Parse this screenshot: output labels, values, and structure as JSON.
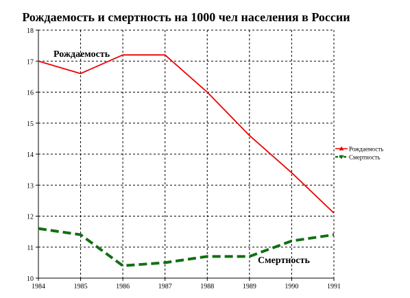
{
  "chart_data": {
    "type": "line",
    "title": "Рождаемость и смертность на 1000 чел населения в России",
    "x": [
      "1984",
      "1985",
      "1986",
      "1987",
      "1988",
      "1989",
      "1990",
      "1991"
    ],
    "ylim": [
      10,
      18
    ],
    "yticks": [
      "10",
      "11",
      "12",
      "13",
      "14",
      "15",
      "16",
      "17",
      "18"
    ],
    "grid": true,
    "legend_position": "right",
    "series": [
      {
        "name": "Рождаемость",
        "color": "#ee0000",
        "style": "solid",
        "marker": "triangle-up",
        "values": [
          17.0,
          16.6,
          17.2,
          17.2,
          16.0,
          14.6,
          13.4,
          12.1
        ]
      },
      {
        "name": "Смертность",
        "color": "#107010",
        "style": "dashed",
        "marker": "triangle-down",
        "values": [
          11.6,
          11.4,
          10.4,
          10.5,
          10.7,
          10.7,
          11.2,
          11.4
        ]
      }
    ],
    "annotations": [
      "Рождаемость",
      "Смертность"
    ]
  }
}
